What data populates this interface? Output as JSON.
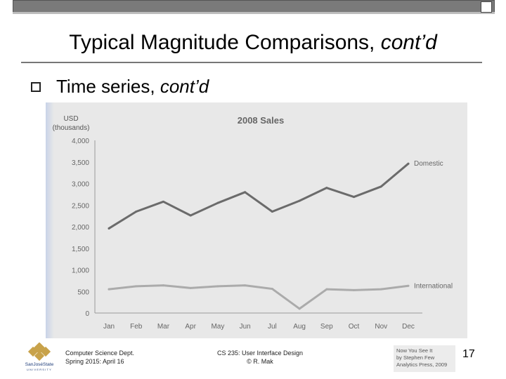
{
  "slide": {
    "title_plain": "Typical Magnitude Comparisons, ",
    "title_italic": "cont’d",
    "bullet_plain": "Time series, ",
    "bullet_italic": "cont’d"
  },
  "footer": {
    "left_line1": "Computer Science Dept.",
    "left_line2": "Spring 2015: April 16",
    "center_line1": "CS 235: User Interface Design",
    "center_line2": "© R. Mak",
    "credit_line1": "Now You See It",
    "credit_line2": "by Stephen Few",
    "credit_line3": "Analytics Press, 2009",
    "page_number": "17",
    "logo_text1": "SanJoséState",
    "logo_text2": "UNIVERSITY"
  },
  "chart_data": {
    "type": "line",
    "title": "2008 Sales",
    "ylabel_line1": "USD",
    "ylabel_line2": "(thousands)",
    "categories": [
      "Jan",
      "Feb",
      "Mar",
      "Apr",
      "May",
      "Jun",
      "Jul",
      "Aug",
      "Sep",
      "Oct",
      "Nov",
      "Dec"
    ],
    "yticks": [
      0,
      500,
      1000,
      1500,
      2000,
      2500,
      3000,
      3500,
      4000
    ],
    "ytick_labels": [
      "0",
      "500",
      "1,000",
      "1,500",
      "2,000",
      "2,500",
      "3,000",
      "3,500",
      "4,000"
    ],
    "ylim": [
      0,
      4000
    ],
    "series": [
      {
        "name": "Domestic",
        "color": "#6b6b6b",
        "values": [
          1960,
          2350,
          2580,
          2260,
          2550,
          2800,
          2350,
          2600,
          2900,
          2690,
          2930,
          3460
        ]
      },
      {
        "name": "International",
        "color": "#ababab",
        "values": [
          550,
          620,
          640,
          580,
          620,
          640,
          560,
          100,
          550,
          530,
          550,
          630
        ]
      }
    ],
    "grid": false,
    "legend": "direct labels at line ends"
  }
}
